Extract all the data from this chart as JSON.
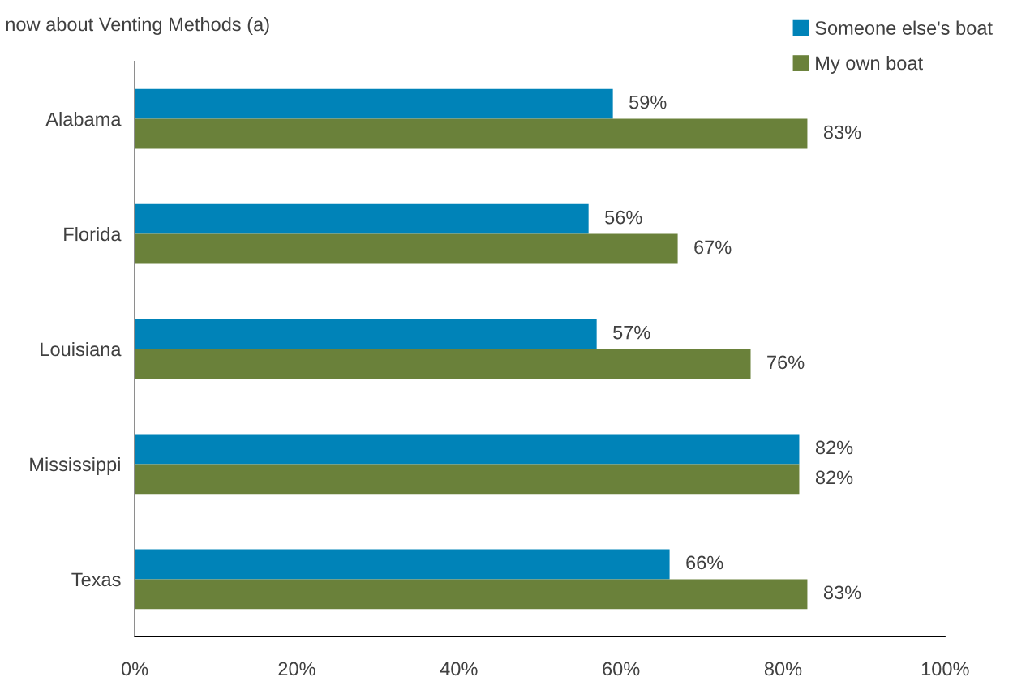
{
  "chart_data": {
    "type": "bar",
    "orientation": "horizontal",
    "title": "now about Venting Methods (a)",
    "categories": [
      "Alabama",
      "Florida",
      "Louisiana",
      "Mississippi",
      "Texas"
    ],
    "series": [
      {
        "name": "Someone else's boat",
        "color": "#0083b8",
        "values": [
          59,
          56,
          57,
          82,
          66
        ],
        "value_labels": [
          "59%",
          "56%",
          "57%",
          "82%",
          "66%"
        ]
      },
      {
        "name": "My own boat",
        "color": "#6a813a",
        "values": [
          83,
          67,
          76,
          82,
          83
        ],
        "value_labels": [
          "83%",
          "67%",
          "76%",
          "82%",
          "83%"
        ]
      }
    ],
    "xlim": [
      0,
      100
    ],
    "xticks": [
      {
        "value": 0,
        "label": "0%"
      },
      {
        "value": 20,
        "label": "20%"
      },
      {
        "value": 40,
        "label": "40%"
      },
      {
        "value": 60,
        "label": "60%"
      },
      {
        "value": 80,
        "label": "80%"
      },
      {
        "value": 100,
        "label": "100%"
      }
    ],
    "grid": false,
    "legend": "top right"
  }
}
